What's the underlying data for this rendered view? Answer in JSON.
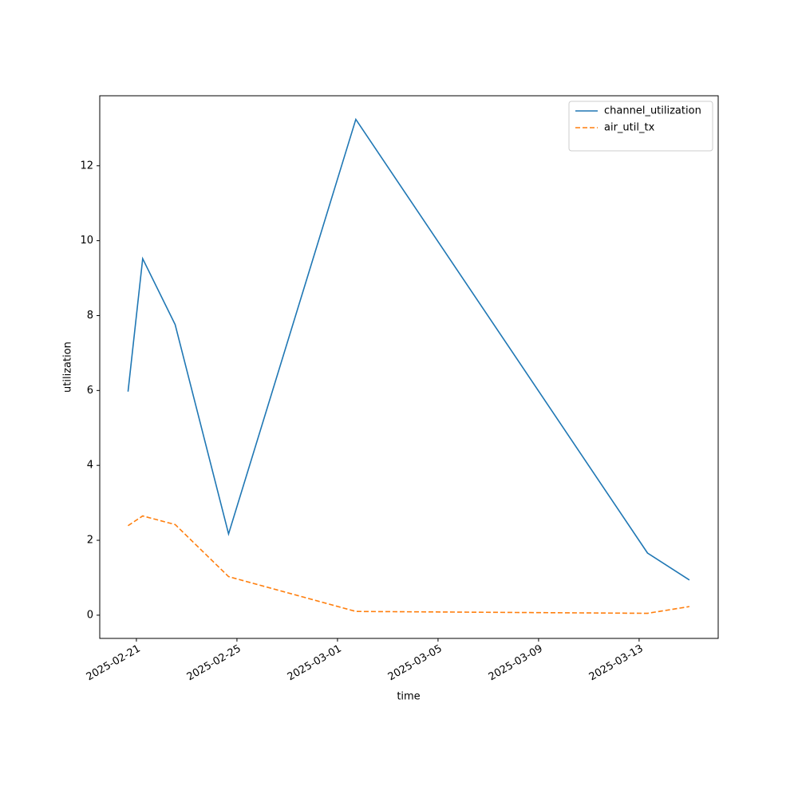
{
  "chart_data": {
    "type": "line",
    "xlabel": "time",
    "ylabel": "utilization",
    "x": [
      "2025-02-20T16:00",
      "2025-02-21T06:00",
      "2025-02-22T13:00",
      "2025-02-24T16:00",
      "2025-03-01T17:30",
      "2025-03-13T08:00",
      "2025-03-15T00:00"
    ],
    "series": [
      {
        "name": "channel_utilization",
        "color": "#1f77b4",
        "dash": "solid",
        "values": [
          5.97,
          9.52,
          7.76,
          2.17,
          13.24,
          1.66,
          0.94
        ]
      },
      {
        "name": "air_util_tx",
        "color": "#ff7f0e",
        "dash": "dashed",
        "values": [
          2.39,
          2.65,
          2.42,
          1.03,
          0.1,
          0.05,
          0.23
        ]
      }
    ],
    "xlim": [
      "2025-02-19T13:00",
      "2025-03-16T03:30"
    ],
    "xticks": [
      "2025-02-21",
      "2025-02-25",
      "2025-03-01",
      "2025-03-05",
      "2025-03-09",
      "2025-03-13"
    ],
    "ylim": [
      -0.62,
      13.87
    ],
    "yticks": [
      0,
      2,
      4,
      6,
      8,
      10,
      12
    ],
    "grid": false,
    "legend": "upper right"
  }
}
